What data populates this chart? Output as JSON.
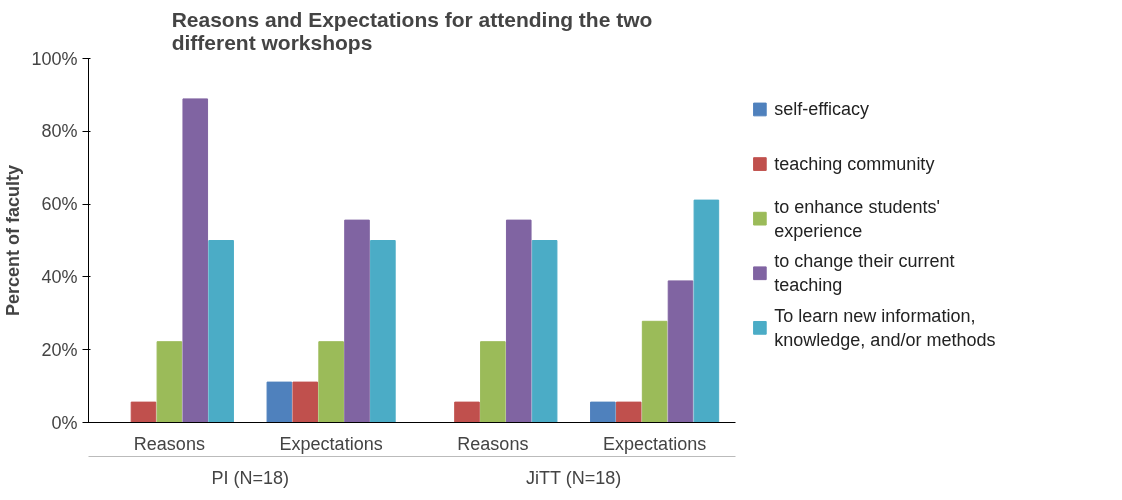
{
  "chart_data": {
    "type": "bar",
    "title": "Reasons and Expectations for attending the two different workshops",
    "ylabel": "Percent of faculty",
    "categories": [
      "Reasons",
      "Expectations",
      "Reasons",
      "Expectations"
    ],
    "series": [
      {
        "name": "self-efficacy",
        "color": "#4f81bd",
        "values": [
          0,
          11.1,
          0,
          5.6
        ]
      },
      {
        "name": "teaching community",
        "color": "#c0504d",
        "values": [
          5.6,
          11.1,
          5.6,
          5.6
        ]
      },
      {
        "name": "to enhance students' experience",
        "color": "#9bbb59",
        "values": [
          22.2,
          22.2,
          22.2,
          27.8
        ]
      },
      {
        "name": "to change their current teaching",
        "color": "#8064a2",
        "values": [
          88.9,
          55.6,
          55.6,
          38.9
        ]
      },
      {
        "name": "To learn new information, knowledge, and/or methods",
        "color": "#4bacc6",
        "values": [
          50,
          50,
          50,
          61.1
        ]
      }
    ],
    "annotations": [
      "PI (N=18)",
      "JiTT (N=18)"
    ],
    "ylim": [
      0,
      100
    ],
    "yticks": [
      {
        "value": 0,
        "label": "0%"
      },
      {
        "value": 20,
        "label": "20%"
      },
      {
        "value": 40,
        "label": "40%"
      },
      {
        "value": 60,
        "label": "60%"
      },
      {
        "value": 80,
        "label": "80%"
      },
      {
        "value": 100,
        "label": "100%"
      }
    ],
    "grid": false,
    "legend": "right"
  }
}
